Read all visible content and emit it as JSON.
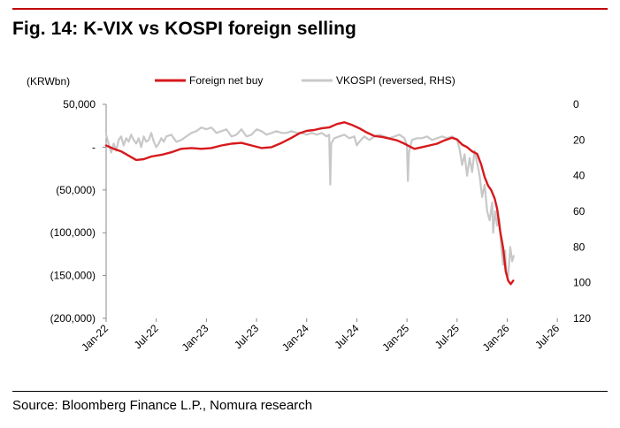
{
  "figure": {
    "title": "Fig. 14: K-VIX vs KOSPI foreign selling",
    "source": "Source: Bloomberg Finance L.P., Nomura research"
  },
  "chart_data": {
    "type": "line",
    "ylabel_left": "(KRWbn)",
    "x_tick_labels": [
      "Jan-22",
      "Jul-22",
      "Jan-23",
      "Jul-23",
      "Jan-24",
      "Jul-24",
      "Jan-25",
      "Jul-25",
      "Jan-26",
      "Jul-26"
    ],
    "y_left": {
      "range": [
        -200000,
        50000
      ],
      "ticks": [
        50000,
        0,
        -50000,
        -100000,
        -150000,
        -200000
      ],
      "tick_labels": [
        "50,000",
        "-",
        "(50,000)",
        "(100,000)",
        "(150,000)",
        "(200,000)"
      ]
    },
    "y_right": {
      "range": [
        0,
        120
      ],
      "reversed": true,
      "ticks": [
        0,
        20,
        40,
        60,
        80,
        100,
        120
      ],
      "tick_labels": [
        "0",
        "20",
        "40",
        "60",
        "80",
        "100",
        "120"
      ]
    },
    "legend": {
      "placement": "top"
    },
    "series": [
      {
        "name": "Foreign net buy",
        "axis": "left",
        "color": "#d7191c",
        "points": [
          [
            0.0,
            2000
          ],
          [
            0.15,
            -2000
          ],
          [
            0.3,
            -5000
          ],
          [
            0.45,
            -10000
          ],
          [
            0.6,
            -15000
          ],
          [
            0.75,
            -14000
          ],
          [
            0.9,
            -11000
          ],
          [
            1.1,
            -9000
          ],
          [
            1.3,
            -6000
          ],
          [
            1.5,
            -2000
          ],
          [
            1.7,
            -1000
          ],
          [
            1.9,
            -2000
          ],
          [
            2.1,
            -1000
          ],
          [
            2.3,
            2000
          ],
          [
            2.5,
            4000
          ],
          [
            2.7,
            5000
          ],
          [
            2.9,
            2000
          ],
          [
            3.1,
            -1000
          ],
          [
            3.3,
            0
          ],
          [
            3.5,
            5000
          ],
          [
            3.7,
            11000
          ],
          [
            3.85,
            16000
          ],
          [
            4.0,
            19000
          ],
          [
            4.15,
            20000
          ],
          [
            4.3,
            22000
          ],
          [
            4.45,
            23000
          ],
          [
            4.6,
            27000
          ],
          [
            4.75,
            29000
          ],
          [
            4.9,
            26000
          ],
          [
            5.05,
            22000
          ],
          [
            5.2,
            17000
          ],
          [
            5.35,
            13000
          ],
          [
            5.5,
            12000
          ],
          [
            5.65,
            10000
          ],
          [
            5.8,
            8000
          ],
          [
            5.95,
            4000
          ],
          [
            6.05,
            1000
          ],
          [
            6.15,
            -2000
          ],
          [
            6.3,
            0
          ],
          [
            6.45,
            2000
          ],
          [
            6.6,
            4000
          ],
          [
            6.75,
            8000
          ],
          [
            6.9,
            11000
          ],
          [
            7.0,
            9000
          ],
          [
            7.1,
            3000
          ],
          [
            7.2,
            0
          ],
          [
            7.3,
            -5000
          ],
          [
            7.4,
            -8000
          ],
          [
            7.48,
            -20000
          ],
          [
            7.55,
            -35000
          ],
          [
            7.62,
            -45000
          ],
          [
            7.68,
            -50000
          ],
          [
            7.75,
            -60000
          ],
          [
            7.8,
            -72000
          ],
          [
            7.86,
            -98000
          ],
          [
            7.92,
            -118000
          ],
          [
            7.97,
            -145000
          ],
          [
            8.02,
            -156000
          ],
          [
            8.07,
            -160000
          ],
          [
            8.12,
            -156000
          ]
        ]
      },
      {
        "name": "VKOSPI (reversed, RHS)",
        "axis": "right",
        "color": "#c8c8c8",
        "points": [
          [
            0.0,
            17
          ],
          [
            0.05,
            22
          ],
          [
            0.1,
            27
          ],
          [
            0.15,
            22
          ],
          [
            0.2,
            26
          ],
          [
            0.25,
            20
          ],
          [
            0.3,
            18
          ],
          [
            0.35,
            23
          ],
          [
            0.4,
            19
          ],
          [
            0.45,
            21
          ],
          [
            0.5,
            17
          ],
          [
            0.55,
            20
          ],
          [
            0.6,
            22
          ],
          [
            0.65,
            19
          ],
          [
            0.7,
            24
          ],
          [
            0.75,
            18
          ],
          [
            0.8,
            21
          ],
          [
            0.85,
            20
          ],
          [
            0.9,
            16
          ],
          [
            0.95,
            21
          ],
          [
            1.0,
            24
          ],
          [
            1.05,
            22
          ],
          [
            1.1,
            19
          ],
          [
            1.15,
            21
          ],
          [
            1.2,
            18
          ],
          [
            1.3,
            17
          ],
          [
            1.4,
            21
          ],
          [
            1.5,
            20
          ],
          [
            1.6,
            18
          ],
          [
            1.7,
            16
          ],
          [
            1.8,
            15
          ],
          [
            1.9,
            13
          ],
          [
            2.0,
            14
          ],
          [
            2.1,
            13
          ],
          [
            2.2,
            16
          ],
          [
            2.3,
            15
          ],
          [
            2.4,
            14
          ],
          [
            2.5,
            18
          ],
          [
            2.6,
            17
          ],
          [
            2.7,
            14
          ],
          [
            2.8,
            18
          ],
          [
            2.9,
            17
          ],
          [
            3.0,
            14
          ],
          [
            3.1,
            15
          ],
          [
            3.2,
            17
          ],
          [
            3.3,
            16
          ],
          [
            3.4,
            15
          ],
          [
            3.5,
            16
          ],
          [
            3.6,
            16
          ],
          [
            3.7,
            15
          ],
          [
            3.8,
            16
          ],
          [
            3.9,
            16
          ],
          [
            4.0,
            17
          ],
          [
            4.1,
            16
          ],
          [
            4.2,
            17
          ],
          [
            4.3,
            16
          ],
          [
            4.4,
            18
          ],
          [
            4.45,
            17
          ],
          [
            4.47,
            45
          ],
          [
            4.49,
            22
          ],
          [
            4.55,
            19
          ],
          [
            4.65,
            18
          ],
          [
            4.75,
            17
          ],
          [
            4.85,
            19
          ],
          [
            4.95,
            18
          ],
          [
            5.0,
            23
          ],
          [
            5.05,
            21
          ],
          [
            5.15,
            18
          ],
          [
            5.25,
            20
          ],
          [
            5.35,
            18
          ],
          [
            5.45,
            17
          ],
          [
            5.55,
            18
          ],
          [
            5.65,
            19
          ],
          [
            5.75,
            18
          ],
          [
            5.85,
            17
          ],
          [
            5.95,
            19
          ],
          [
            6.0,
            23
          ],
          [
            6.02,
            43
          ],
          [
            6.04,
            27
          ],
          [
            6.1,
            20
          ],
          [
            6.2,
            19
          ],
          [
            6.3,
            19
          ],
          [
            6.4,
            18
          ],
          [
            6.5,
            20
          ],
          [
            6.6,
            19
          ],
          [
            6.7,
            18
          ],
          [
            6.8,
            19
          ],
          [
            6.9,
            18
          ],
          [
            7.0,
            20
          ],
          [
            7.05,
            25
          ],
          [
            7.1,
            34
          ],
          [
            7.15,
            28
          ],
          [
            7.2,
            40
          ],
          [
            7.25,
            30
          ],
          [
            7.3,
            38
          ],
          [
            7.35,
            26
          ],
          [
            7.4,
            33
          ],
          [
            7.45,
            40
          ],
          [
            7.5,
            52
          ],
          [
            7.55,
            45
          ],
          [
            7.6,
            60
          ],
          [
            7.65,
            65
          ],
          [
            7.7,
            55
          ],
          [
            7.72,
            72
          ],
          [
            7.76,
            60
          ],
          [
            7.8,
            68
          ],
          [
            7.84,
            64
          ],
          [
            7.88,
            80
          ],
          [
            7.92,
            90
          ],
          [
            7.96,
            82
          ],
          [
            7.98,
            93
          ],
          [
            8.02,
            96
          ],
          [
            8.06,
            80
          ],
          [
            8.1,
            88
          ],
          [
            8.13,
            85
          ]
        ]
      }
    ]
  }
}
